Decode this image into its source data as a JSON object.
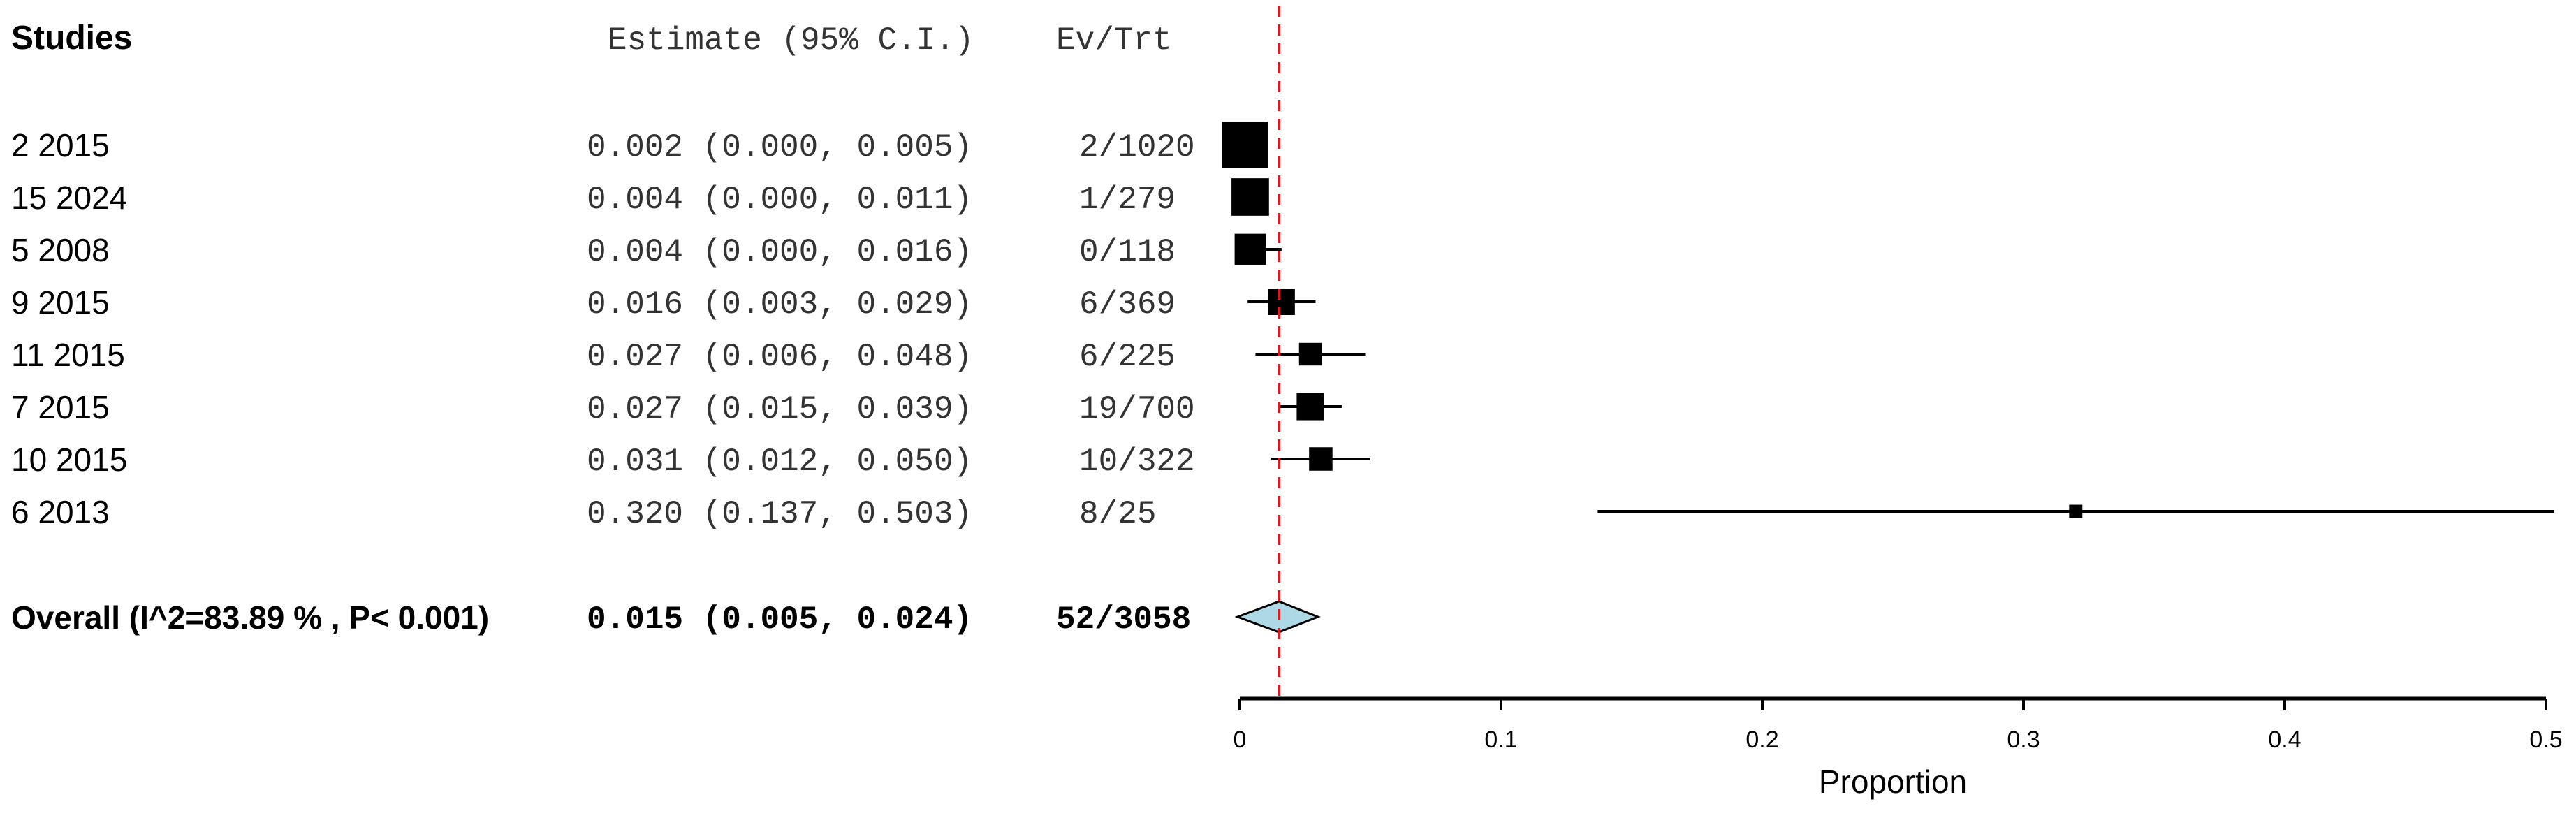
{
  "chart_data": {
    "type": "forest",
    "headers": {
      "studies": "Studies",
      "estimate": "Estimate (95% C.I.)",
      "evtrt": "Ev/Trt"
    },
    "studies": [
      {
        "label": "2 2015",
        "est": 0.002,
        "lo": 0.0,
        "hi": 0.005,
        "ci_text": "0.002 (0.000, 0.005)",
        "evtrt": "2/1020",
        "weight": 1.0
      },
      {
        "label": "15 2024",
        "est": 0.004,
        "lo": 0.0,
        "hi": 0.011,
        "ci_text": "0.004 (0.000, 0.011)",
        "evtrt": "1/279",
        "weight": 0.78
      },
      {
        "label": "5 2008",
        "est": 0.004,
        "lo": 0.0,
        "hi": 0.016,
        "ci_text": "0.004 (0.000, 0.016)",
        "evtrt": "0/118",
        "weight": 0.62
      },
      {
        "label": "9 2015",
        "est": 0.016,
        "lo": 0.003,
        "hi": 0.029,
        "ci_text": "0.016 (0.003, 0.029)",
        "evtrt": "6/369",
        "weight": 0.5
      },
      {
        "label": "11 2015",
        "est": 0.027,
        "lo": 0.006,
        "hi": 0.048,
        "ci_text": "0.027 (0.006, 0.048)",
        "evtrt": "6/225",
        "weight": 0.4
      },
      {
        "label": "7 2015",
        "est": 0.027,
        "lo": 0.015,
        "hi": 0.039,
        "ci_text": "0.027 (0.015, 0.039)",
        "evtrt": "19/700",
        "weight": 0.52
      },
      {
        "label": "10 2015",
        "est": 0.031,
        "lo": 0.012,
        "hi": 0.05,
        "ci_text": "0.031 (0.012, 0.050)",
        "evtrt": "10/322",
        "weight": 0.42
      },
      {
        "label": "6 2013",
        "est": 0.32,
        "lo": 0.137,
        "hi": 0.503,
        "ci_text": "0.320 (0.137, 0.503)",
        "evtrt": "8/25",
        "weight": 0.16
      }
    ],
    "overall": {
      "label": "Overall (I^2=83.89 % , P< 0.001)",
      "est": 0.015,
      "lo": 0.005,
      "hi": 0.024,
      "ci_text": "0.015 (0.005, 0.024)",
      "evtrt": "52/3058"
    },
    "reference_line": 0.015,
    "xaxis": {
      "label": "Proportion",
      "range": [
        0,
        0.5
      ],
      "ticks": [
        0,
        0.1,
        0.2,
        0.3,
        0.4,
        0.5
      ],
      "tick_labels": [
        "0",
        "0.1",
        "0.2",
        "0.3",
        "0.4",
        "0.5"
      ]
    },
    "colors": {
      "marker": "#000000",
      "reference_line": "#e3161b",
      "diamond_fill": "#add8e6",
      "diamond_stroke": "#000000"
    }
  }
}
